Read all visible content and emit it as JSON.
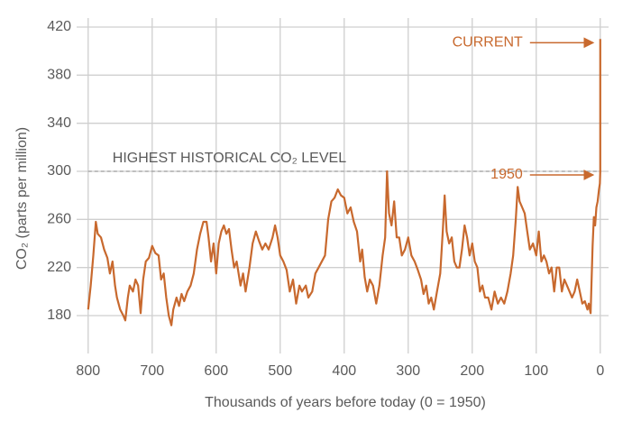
{
  "chart_data": {
    "type": "line",
    "xlabel": "Thousands of years before today (0 = 1950)",
    "ylabel": "CO₂ (parts per million)",
    "xlim": [
      818,
      -13
    ],
    "ylim": [
      150,
      420
    ],
    "xticks": [
      800,
      700,
      600,
      500,
      400,
      300,
      200,
      100,
      0
    ],
    "yticks": [
      180,
      220,
      260,
      300,
      340,
      380,
      420
    ],
    "grid": true,
    "reference_line": {
      "text": "HIGHEST HISTORICAL CO₂ LEVEL",
      "y": 300,
      "color": "#a0a0a0"
    },
    "annotations": [
      {
        "text": "CURRENT",
        "x": -0.07,
        "y": 410
      },
      {
        "text": "1950",
        "x": 0,
        "y": 300
      }
    ],
    "series": [
      {
        "name": "CO₂",
        "color": "#c8692e",
        "x": [
          800,
          796,
          792,
          788,
          785,
          780,
          775,
          770,
          766,
          762,
          758,
          755,
          750,
          745,
          742,
          738,
          735,
          730,
          726,
          722,
          718,
          714,
          710,
          705,
          700,
          695,
          690,
          686,
          682,
          678,
          674,
          670,
          667,
          662,
          658,
          654,
          650,
          645,
          640,
          635,
          630,
          625,
          620,
          615,
          612,
          608,
          604,
          600,
          596,
          592,
          588,
          584,
          580,
          576,
          572,
          568,
          562,
          558,
          554,
          548,
          543,
          538,
          533,
          528,
          523,
          518,
          512,
          508,
          504,
          500,
          495,
          490,
          485,
          480,
          475,
          470,
          466,
          460,
          456,
          450,
          445,
          440,
          430,
          425,
          420,
          415,
          410,
          405,
          400,
          395,
          390,
          385,
          380,
          375,
          372,
          368,
          364,
          360,
          355,
          350,
          345,
          340,
          336,
          333,
          330,
          326,
          322,
          318,
          314,
          310,
          305,
          300,
          295,
          290,
          285,
          280,
          276,
          272,
          268,
          264,
          260,
          255,
          250,
          246,
          243,
          240,
          236,
          232,
          228,
          224,
          220,
          216,
          212,
          208,
          204,
          200,
          196,
          192,
          188,
          184,
          180,
          175,
          170,
          165,
          160,
          155,
          150,
          145,
          140,
          136,
          132,
          129,
          126,
          122,
          118,
          114,
          110,
          105,
          100,
          96,
          92,
          88,
          84,
          80,
          76,
          72,
          68,
          64,
          60,
          56,
          52,
          48,
          44,
          40,
          36,
          32,
          28,
          24,
          20,
          18,
          15,
          12,
          10,
          8,
          6,
          4,
          2,
          0.5,
          0,
          -0.07
        ],
        "values": [
          185,
          205,
          230,
          258,
          248,
          245,
          235,
          228,
          215,
          225,
          205,
          195,
          185,
          180,
          176,
          195,
          205,
          200,
          210,
          205,
          182,
          210,
          225,
          228,
          238,
          232,
          230,
          210,
          215,
          195,
          180,
          172,
          185,
          195,
          188,
          198,
          192,
          200,
          205,
          215,
          235,
          248,
          258,
          258,
          245,
          225,
          240,
          215,
          240,
          250,
          255,
          248,
          252,
          235,
          220,
          225,
          205,
          215,
          200,
          220,
          240,
          250,
          242,
          235,
          240,
          235,
          245,
          255,
          245,
          230,
          225,
          218,
          200,
          210,
          190,
          205,
          200,
          205,
          195,
          200,
          215,
          220,
          230,
          260,
          275,
          278,
          285,
          280,
          278,
          265,
          270,
          258,
          250,
          225,
          235,
          212,
          200,
          210,
          205,
          190,
          205,
          230,
          245,
          300,
          265,
          255,
          275,
          245,
          245,
          230,
          235,
          245,
          230,
          225,
          218,
          210,
          198,
          205,
          190,
          195,
          185,
          200,
          215,
          250,
          280,
          250,
          240,
          245,
          225,
          220,
          220,
          235,
          255,
          245,
          230,
          240,
          225,
          220,
          200,
          205,
          195,
          195,
          185,
          200,
          190,
          195,
          190,
          200,
          215,
          230,
          260,
          287,
          275,
          270,
          265,
          250,
          235,
          240,
          230,
          250,
          225,
          230,
          225,
          215,
          220,
          200,
          220,
          220,
          200,
          210,
          205,
          200,
          195,
          200,
          210,
          200,
          190,
          192,
          185,
          190,
          182,
          238,
          262,
          255,
          270,
          275,
          285,
          290,
          300,
          410
        ]
      }
    ]
  }
}
